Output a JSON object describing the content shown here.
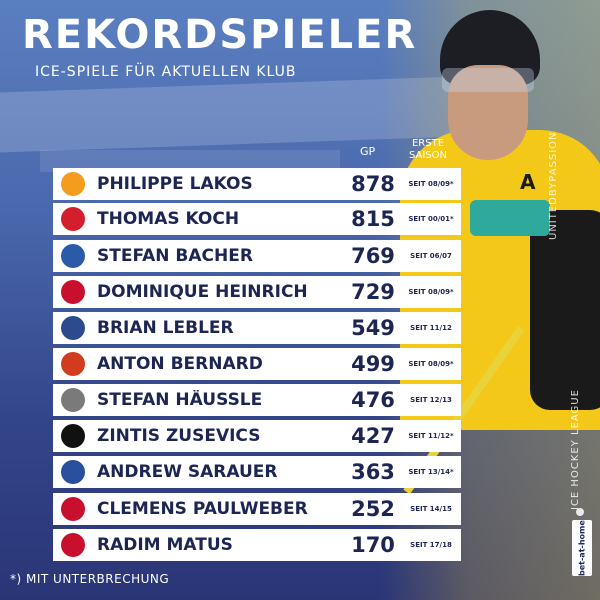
{
  "header": {
    "title": "REKORDSPIELER",
    "subtitle": "ICE-SPIELE FÜR AKTUELLEN KLUB"
  },
  "columns": {
    "gp": "GP",
    "season": "ERSTE SAISON"
  },
  "players": [
    {
      "name": "PHILIPPE LAKOS",
      "gp": "878",
      "season": "SEIT 08/09*",
      "logo_color": "#f39c1d",
      "logo_icon": "vienna-capitals-logo"
    },
    {
      "name": "THOMAS KOCH",
      "gp": "815",
      "season": "SEIT 00/01*",
      "logo_color": "#d21f2b",
      "logo_icon": "kac-logo"
    },
    {
      "name": "STEFAN BACHER",
      "gp": "769",
      "season": "SEIT 06/07",
      "logo_color": "#2b5aa8",
      "logo_icon": "vsv-logo"
    },
    {
      "name": "DOMINIQUE HEINRICH",
      "gp": "729",
      "season": "SEIT 08/09*",
      "logo_color": "#c8102e",
      "logo_icon": "red-bull-salzburg-logo"
    },
    {
      "name": "BRIAN LEBLER",
      "gp": "549",
      "season": "SEIT 11/12",
      "logo_color": "#2c4b8f",
      "logo_icon": "black-wings-linz-logo"
    },
    {
      "name": "ANTON BERNARD",
      "gp": "499",
      "season": "SEIT 08/09*",
      "logo_color": "#d23c1e",
      "logo_icon": "bolzano-foxes-logo"
    },
    {
      "name": "STEFAN HÄUSSLE",
      "gp": "476",
      "season": "SEIT 12/13",
      "logo_color": "#7a7a7a",
      "logo_icon": "graz-99ers-eagle-logo"
    },
    {
      "name": "ZINTIS ZUSEVICS",
      "gp": "427",
      "season": "SEIT 11/12*",
      "logo_color": "#111111",
      "logo_icon": "graz-99ers-logo"
    },
    {
      "name": "ANDREW SARAUER",
      "gp": "363",
      "season": "SEIT 13/14*",
      "logo_color": "#2a4f9c",
      "logo_icon": "dornbirn-logo"
    },
    {
      "name": "CLEMENS PAULWEBER",
      "gp": "252",
      "season": "SEIT 14/15",
      "logo_color": "#c8102e",
      "logo_icon": "innsbruck-logo"
    },
    {
      "name": "RADIM MATUS",
      "gp": "170",
      "season": "SEIT 17/18",
      "logo_color": "#c8102e",
      "logo_icon": "tesla-orli-znojmo-logo"
    }
  ],
  "footnote": "*) MIT UNTERBRECHUNG",
  "side": {
    "tagline": "UNITEDBYPASSION",
    "league": "ICE HOCKEY LEAGUE",
    "sponsor": "bet-at-home"
  },
  "colors": {
    "row_bg": "#ffffff",
    "row_text": "#1d2553",
    "background_top": "#5a7fc0",
    "background_bottom": "#2a3576",
    "jersey": "#f4c818"
  }
}
